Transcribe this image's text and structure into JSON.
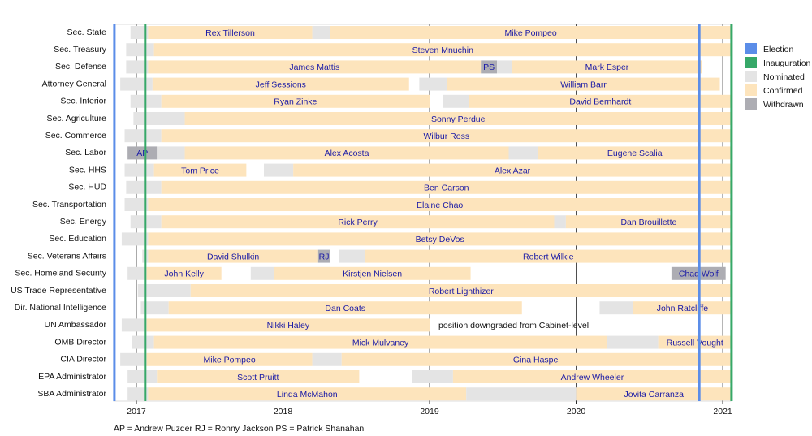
{
  "chart_data": {
    "type": "timeline",
    "xlim": [
      2016.845,
      2021.055
    ],
    "xticks": [
      2017,
      2018,
      2019,
      2020,
      2021
    ],
    "statuses": [
      {
        "name": "Nominated",
        "color": "#e4e4e4"
      },
      {
        "name": "Confirmed",
        "color": "#fde4bc"
      },
      {
        "name": "Withdrawn",
        "color": "#adadb3"
      }
    ],
    "events": [
      {
        "name": "Election",
        "color": "#5b8de8",
        "x": [
          2016.85,
          2020.84
        ]
      },
      {
        "name": "Inauguration",
        "color": "#36a868",
        "x": [
          2017.06,
          2021.06
        ]
      }
    ],
    "rows": [
      {
        "name": "Sec. State",
        "segments": [
          {
            "status": "Nominated",
            "start": 2016.96,
            "end": 2017.08
          },
          {
            "status": "Confirmed",
            "start": 2017.08,
            "end": 2018.2,
            "label": "Rex Tillerson"
          },
          {
            "status": "Nominated",
            "start": 2018.2,
            "end": 2018.32
          },
          {
            "status": "Confirmed",
            "start": 2018.32,
            "end": 2021.06,
            "label": "Mike Pompeo"
          }
        ]
      },
      {
        "name": "Sec. Treasury",
        "segments": [
          {
            "status": "Nominated",
            "start": 2016.93,
            "end": 2017.12
          },
          {
            "status": "Confirmed",
            "start": 2017.12,
            "end": 2021.06,
            "label": "Steven Mnuchin"
          }
        ]
      },
      {
        "name": "Sec. Defense",
        "segments": [
          {
            "status": "Nominated",
            "start": 2016.93,
            "end": 2017.08
          },
          {
            "status": "Confirmed",
            "start": 2017.08,
            "end": 2019.35,
            "label": "James Mattis"
          },
          {
            "status": "Withdrawn",
            "start": 2019.35,
            "end": 2019.46,
            "label": "PS"
          },
          {
            "status": "Nominated",
            "start": 2019.46,
            "end": 2019.56
          },
          {
            "status": "Confirmed",
            "start": 2019.56,
            "end": 2020.86,
            "label": "Mark Esper"
          }
        ]
      },
      {
        "name": "Attorney General",
        "segments": [
          {
            "status": "Nominated",
            "start": 2016.89,
            "end": 2017.11
          },
          {
            "status": "Confirmed",
            "start": 2017.11,
            "end": 2018.86,
            "label": "Jeff Sessions"
          },
          {
            "status": "Nominated",
            "start": 2018.93,
            "end": 2019.12
          },
          {
            "status": "Confirmed",
            "start": 2019.12,
            "end": 2020.98,
            "label": "William Barr"
          }
        ]
      },
      {
        "name": "Sec. Interior",
        "segments": [
          {
            "status": "Nominated",
            "start": 2016.96,
            "end": 2017.17
          },
          {
            "status": "Confirmed",
            "start": 2017.17,
            "end": 2019.0,
            "label": "Ryan Zinke"
          },
          {
            "status": "Nominated",
            "start": 2019.09,
            "end": 2019.27
          },
          {
            "status": "Confirmed",
            "start": 2019.27,
            "end": 2021.06,
            "label": "David Bernhardt"
          }
        ]
      },
      {
        "name": "Sec. Agriculture",
        "segments": [
          {
            "status": "Nominated",
            "start": 2016.98,
            "end": 2017.33
          },
          {
            "status": "Confirmed",
            "start": 2017.33,
            "end": 2021.06,
            "label": "Sonny Perdue"
          }
        ]
      },
      {
        "name": "Sec. Commerce",
        "segments": [
          {
            "status": "Nominated",
            "start": 2016.92,
            "end": 2017.17
          },
          {
            "status": "Confirmed",
            "start": 2017.17,
            "end": 2021.06,
            "label": "Wilbur Ross"
          }
        ]
      },
      {
        "name": "Sec. Labor",
        "segments": [
          {
            "status": "Withdrawn",
            "start": 2016.94,
            "end": 2017.14,
            "label": "AP"
          },
          {
            "status": "Nominated",
            "start": 2017.14,
            "end": 2017.33
          },
          {
            "status": "Confirmed",
            "start": 2017.33,
            "end": 2019.54,
            "label": "Alex Acosta"
          },
          {
            "status": "Nominated",
            "start": 2019.54,
            "end": 2019.74
          },
          {
            "status": "Confirmed",
            "start": 2019.74,
            "end": 2021.06,
            "label": "Eugene Scalia"
          }
        ]
      },
      {
        "name": "Sec. HHS",
        "segments": [
          {
            "status": "Nominated",
            "start": 2016.92,
            "end": 2017.12
          },
          {
            "status": "Confirmed",
            "start": 2017.12,
            "end": 2017.75,
            "label": "Tom Price"
          },
          {
            "status": "Nominated",
            "start": 2017.87,
            "end": 2018.07
          },
          {
            "status": "Confirmed",
            "start": 2018.07,
            "end": 2021.06,
            "label": "Alex Azar"
          }
        ]
      },
      {
        "name": "Sec. HUD",
        "segments": [
          {
            "status": "Nominated",
            "start": 2016.93,
            "end": 2017.17
          },
          {
            "status": "Confirmed",
            "start": 2017.17,
            "end": 2021.06,
            "label": "Ben Carson"
          }
        ]
      },
      {
        "name": "Sec. Transportation",
        "segments": [
          {
            "status": "Nominated",
            "start": 2016.92,
            "end": 2017.08
          },
          {
            "status": "Confirmed",
            "start": 2017.08,
            "end": 2021.06,
            "label": "Elaine Chao"
          }
        ]
      },
      {
        "name": "Sec. Energy",
        "segments": [
          {
            "status": "Nominated",
            "start": 2016.96,
            "end": 2017.17
          },
          {
            "status": "Confirmed",
            "start": 2017.17,
            "end": 2019.85,
            "label": "Rick Perry"
          },
          {
            "status": "Nominated",
            "start": 2019.85,
            "end": 2019.93
          },
          {
            "status": "Confirmed",
            "start": 2019.93,
            "end": 2021.06,
            "label": "Dan Brouillette"
          }
        ]
      },
      {
        "name": "Sec. Education",
        "segments": [
          {
            "status": "Nominated",
            "start": 2016.9,
            "end": 2017.08
          },
          {
            "status": "Confirmed",
            "start": 2017.08,
            "end": 2021.06,
            "label": "Betsy DeVos"
          }
        ]
      },
      {
        "name": "Sec. Veterans Affairs",
        "segments": [
          {
            "status": "Nominated",
            "start": 2017.04,
            "end": 2017.08
          },
          {
            "status": "Confirmed",
            "start": 2017.08,
            "end": 2018.24,
            "label": "David Shulkin"
          },
          {
            "status": "Withdrawn",
            "start": 2018.24,
            "end": 2018.32,
            "label": "RJ"
          },
          {
            "status": "Nominated",
            "start": 2018.38,
            "end": 2018.56
          },
          {
            "status": "Confirmed",
            "start": 2018.56,
            "end": 2021.06,
            "label": "Robert Wilkie"
          }
        ]
      },
      {
        "name": "Sec. Homeland Security",
        "segments": [
          {
            "status": "Nominated",
            "start": 2016.94,
            "end": 2017.07
          },
          {
            "status": "Confirmed",
            "start": 2017.07,
            "end": 2017.58,
            "label": "John Kelly"
          },
          {
            "status": "Nominated",
            "start": 2017.78,
            "end": 2017.94
          },
          {
            "status": "Confirmed",
            "start": 2017.94,
            "end": 2019.28,
            "label": "Kirstjen Nielsen"
          },
          {
            "status": "Withdrawn",
            "start": 2020.65,
            "end": 2021.02,
            "label": "Chad Wolf"
          }
        ]
      },
      {
        "name": "US Trade Representative",
        "segments": [
          {
            "status": "Nominated",
            "start": 2017.01,
            "end": 2017.37
          },
          {
            "status": "Confirmed",
            "start": 2017.37,
            "end": 2021.06,
            "label": "Robert Lighthizer"
          }
        ]
      },
      {
        "name": "Dir. National Intelligence",
        "segments": [
          {
            "status": "Nominated",
            "start": 2017.03,
            "end": 2017.22
          },
          {
            "status": "Confirmed",
            "start": 2017.22,
            "end": 2019.63,
            "label": "Dan Coats"
          },
          {
            "status": "Nominated",
            "start": 2020.16,
            "end": 2020.39
          },
          {
            "status": "Confirmed",
            "start": 2020.39,
            "end": 2021.06,
            "label": "John Ratcliffe"
          }
        ]
      },
      {
        "name": "UN Ambassador",
        "note": "position downgraded from Cabinet-level",
        "segments": [
          {
            "status": "Nominated",
            "start": 2016.9,
            "end": 2017.07
          },
          {
            "status": "Confirmed",
            "start": 2017.07,
            "end": 2019.0,
            "label": "Nikki Haley"
          }
        ]
      },
      {
        "name": "OMB Director",
        "segments": [
          {
            "status": "Nominated",
            "start": 2016.97,
            "end": 2017.12
          },
          {
            "status": "Confirmed",
            "start": 2017.12,
            "end": 2020.21,
            "label": "Mick Mulvaney"
          },
          {
            "status": "Nominated",
            "start": 2020.21,
            "end": 2020.56
          },
          {
            "status": "Confirmed",
            "start": 2020.56,
            "end": 2021.06,
            "label": "Russell Vought"
          }
        ]
      },
      {
        "name": "CIA Director",
        "segments": [
          {
            "status": "Nominated",
            "start": 2016.89,
            "end": 2017.07
          },
          {
            "status": "Confirmed",
            "start": 2017.07,
            "end": 2018.2,
            "label": "Mike Pompeo"
          },
          {
            "status": "Nominated",
            "start": 2018.2,
            "end": 2018.4
          },
          {
            "status": "Confirmed",
            "start": 2018.4,
            "end": 2021.06,
            "label": "Gina Haspel"
          }
        ]
      },
      {
        "name": "EPA Administrator",
        "segments": [
          {
            "status": "Nominated",
            "start": 2016.94,
            "end": 2017.14
          },
          {
            "status": "Confirmed",
            "start": 2017.14,
            "end": 2018.52,
            "label": "Scott Pruitt"
          },
          {
            "status": "Nominated",
            "start": 2018.88,
            "end": 2019.16
          },
          {
            "status": "Confirmed",
            "start": 2019.16,
            "end": 2021.06,
            "label": "Andrew Wheeler"
          }
        ]
      },
      {
        "name": "SBA Administrator",
        "segments": [
          {
            "status": "Nominated",
            "start": 2016.94,
            "end": 2017.08
          },
          {
            "status": "Confirmed",
            "start": 2017.08,
            "end": 2019.25,
            "label": "Linda McMahon"
          },
          {
            "status": "Nominated",
            "start": 2019.25,
            "end": 2020.0
          },
          {
            "status": "Confirmed",
            "start": 2020.0,
            "end": 2021.06,
            "label": "Jovita Carranza"
          }
        ]
      }
    ],
    "footnote": "AP = Andrew Puzder   RJ = Ronny Jackson   PS = Patrick Shanahan"
  }
}
